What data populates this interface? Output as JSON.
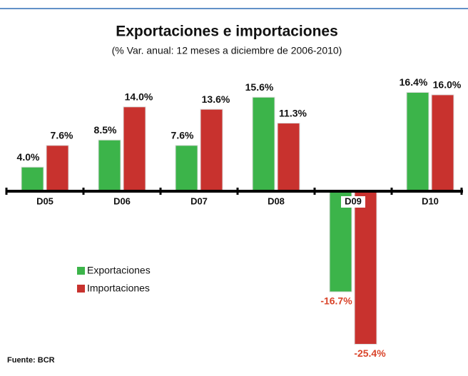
{
  "chart_data": {
    "type": "bar",
    "title": "Exportaciones e importaciones",
    "subtitle": "(% Var. anual: 12 meses a diciembre de 2006-2010)",
    "categories": [
      "D05",
      "D06",
      "D07",
      "D08",
      "D09",
      "D10"
    ],
    "series": [
      {
        "name": "Exportaciones",
        "color": "#3cb44a",
        "values": [
          4.0,
          8.5,
          7.6,
          15.6,
          -16.7,
          16.4
        ],
        "value_labels": [
          "4.0%",
          "8.5%",
          "7.6%",
          "15.6%",
          "-16.7%",
          "16.4%"
        ]
      },
      {
        "name": "Importaciones",
        "color": "#c8322e",
        "values": [
          7.6,
          14.0,
          13.6,
          11.3,
          -25.4,
          16.0
        ],
        "value_labels": [
          "7.6%",
          "14.0%",
          "13.6%",
          "11.3%",
          "-25.4%",
          "16.0%"
        ]
      }
    ],
    "ylim": [
      -27,
      18
    ],
    "source": "Fuente: BCR"
  }
}
